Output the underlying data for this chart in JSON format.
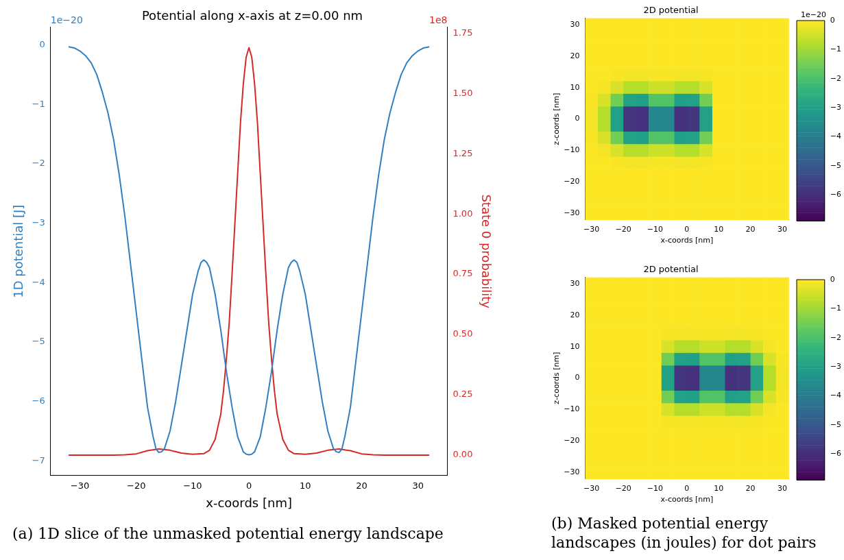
{
  "chart_data": [
    {
      "type": "line",
      "title": "Potential along x-axis at z=0.00 nm",
      "xlabel": "x-coords [nm]",
      "ylabel": "1D potential [J]",
      "y2label": "State 0 probability",
      "xlim": [
        -35.2,
        35.2
      ],
      "xticks": [
        -30,
        -20,
        -10,
        0,
        10,
        20,
        30
      ],
      "ylim": [
        -7.25,
        0.3
      ],
      "yticks": [
        -7,
        -6,
        -5,
        -4,
        -3,
        -2,
        -1,
        0
      ],
      "y2lim": [
        -0.085,
        1.775
      ],
      "y2ticks": [
        {
          "value": 0,
          "label": "0.00"
        },
        {
          "value": 0.25,
          "label": "0.25"
        },
        {
          "value": 0.5,
          "label": "0.50"
        },
        {
          "value": 0.75,
          "label": "0.75"
        },
        {
          "value": 1,
          "label": "1.00"
        },
        {
          "value": 1.25,
          "label": "1.25"
        },
        {
          "value": 1.5,
          "label": "1.50"
        },
        {
          "value": 1.75,
          "label": "1.75"
        }
      ],
      "grid": false,
      "legend": false,
      "marker": "none",
      "line_style": "solid",
      "series": [
        {
          "color": "#2f7fc1",
          "x": [
            -32,
            -31,
            -30,
            -29,
            -28,
            -27,
            -26,
            -25,
            -24,
            -23,
            -22,
            -21,
            -20,
            -19,
            -18,
            -17,
            -16.5,
            -16,
            -15.5,
            -15,
            -14,
            -13,
            -12,
            -11,
            -10,
            -9,
            -8.5,
            -8,
            -7.5,
            -7,
            -6,
            -5,
            -4,
            -3,
            -2,
            -1,
            -0.5,
            0,
            0.5,
            1,
            2,
            3,
            4,
            5,
            6,
            7,
            7.5,
            8,
            8.5,
            9,
            10,
            11,
            12,
            13,
            14,
            15,
            15.5,
            16,
            16.5,
            17,
            18,
            19,
            20,
            21,
            22,
            23,
            24,
            25,
            26,
            27,
            28,
            29,
            30,
            31,
            32
          ],
          "values": [
            -0.03,
            -0.05,
            -0.1,
            -0.18,
            -0.3,
            -0.5,
            -0.8,
            -1.15,
            -1.6,
            -2.2,
            -2.9,
            -3.7,
            -4.5,
            -5.3,
            -6.1,
            -6.6,
            -6.8,
            -6.86,
            -6.85,
            -6.8,
            -6.5,
            -6.0,
            -5.4,
            -4.8,
            -4.2,
            -3.8,
            -3.66,
            -3.62,
            -3.66,
            -3.75,
            -4.2,
            -4.8,
            -5.5,
            -6.1,
            -6.6,
            -6.85,
            -6.89,
            -6.9,
            -6.89,
            -6.85,
            -6.6,
            -6.1,
            -5.5,
            -4.8,
            -4.2,
            -3.75,
            -3.66,
            -3.62,
            -3.66,
            -3.8,
            -4.2,
            -4.8,
            -5.4,
            -6.0,
            -6.5,
            -6.8,
            -6.85,
            -6.86,
            -6.8,
            -6.6,
            -6.1,
            -5.3,
            -4.5,
            -3.7,
            -2.9,
            -2.2,
            -1.6,
            -1.15,
            -0.8,
            -0.5,
            -0.3,
            -0.18,
            -0.1,
            -0.05,
            -0.03
          ]
        },
        {
          "color": "#d62728",
          "axis": "y2",
          "x": [
            -32,
            -24,
            -22,
            -20,
            -18,
            -16,
            -14,
            -12,
            -10,
            -8,
            -7,
            -6,
            -5,
            -4.5,
            -4,
            -3.5,
            -3,
            -2.5,
            -2,
            -1.5,
            -1,
            -0.5,
            0,
            0.5,
            1,
            1.5,
            2,
            2.5,
            3,
            3.5,
            4,
            4.5,
            5,
            6,
            7,
            8,
            10,
            12,
            14,
            16,
            18,
            20,
            22,
            24,
            32
          ],
          "values": [
            0,
            0,
            0.001,
            0.005,
            0.018,
            0.025,
            0.02,
            0.008,
            0.003,
            0.006,
            0.02,
            0.065,
            0.17,
            0.27,
            0.4,
            0.55,
            0.75,
            0.96,
            1.17,
            1.38,
            1.54,
            1.65,
            1.69,
            1.65,
            1.54,
            1.38,
            1.17,
            0.96,
            0.75,
            0.55,
            0.4,
            0.27,
            0.17,
            0.065,
            0.02,
            0.006,
            0.003,
            0.008,
            0.02,
            0.025,
            0.018,
            0.005,
            0.001,
            0,
            0
          ]
        }
      ],
      "annotations": [
        "1e−20",
        "1e8",
        "(a) 1D slice of the unmasked potential energy landscape"
      ]
    },
    {
      "type": "heatmap",
      "title": "2D potential",
      "xlabel": "x-coords [nm]",
      "ylabel": "z-coords [nm]",
      "xlim": [
        -32,
        32
      ],
      "xticks": [
        -30,
        -20,
        -10,
        0,
        10,
        20,
        30
      ],
      "ylim": [
        -32,
        32
      ],
      "yticks": [
        -30,
        -20,
        -10,
        0,
        10,
        20,
        30
      ],
      "clim": [
        -6.9,
        0
      ],
      "cticks": [
        0,
        -1,
        -2,
        -3,
        -4,
        -5,
        -6
      ],
      "annotations": [
        "1e−20"
      ],
      "cells": [
        [
          0,
          0,
          0,
          0,
          0,
          0,
          0,
          0,
          0,
          0,
          0,
          0,
          0,
          0,
          0,
          0
        ],
        [
          0,
          0,
          0,
          0,
          0,
          0,
          0,
          0,
          0,
          0,
          0,
          0,
          0,
          0,
          0,
          0
        ],
        [
          0,
          0,
          0,
          0,
          0,
          0,
          0,
          0,
          0,
          0,
          0,
          0,
          0,
          0,
          0,
          0
        ],
        [
          0,
          0,
          0,
          0,
          0,
          0,
          0,
          0,
          0,
          0,
          0,
          0,
          0,
          0,
          0,
          0
        ],
        [
          0,
          -0.01,
          -0.05,
          -0.1,
          -0.1,
          -0.07,
          -0.07,
          -0.1,
          -0.1,
          -0.05,
          0,
          0,
          0,
          0,
          0,
          0
        ],
        [
          -0.01,
          -0.1,
          -0.39,
          -0.77,
          -0.77,
          -0.5,
          -0.5,
          -0.78,
          -0.77,
          -0.39,
          0,
          0,
          0,
          0,
          0,
          0
        ],
        [
          -0.05,
          -0.39,
          -1.51,
          -2.97,
          -3.02,
          -1.9,
          -1.9,
          -3.02,
          -2.97,
          -1.51,
          0,
          0,
          0,
          0,
          0,
          0
        ],
        [
          -0.1,
          -0.77,
          -2.97,
          -5.83,
          -5.93,
          -3.73,
          -3.73,
          -5.93,
          -5.84,
          -2.97,
          0,
          0,
          0,
          0,
          0,
          0
        ],
        [
          -0.1,
          -0.77,
          -2.97,
          -5.83,
          -5.93,
          -3.73,
          -3.73,
          -5.93,
          -5.84,
          -2.97,
          0,
          0,
          0,
          0,
          0,
          0
        ],
        [
          -0.05,
          -0.39,
          -1.51,
          -2.97,
          -3.02,
          -1.9,
          -1.9,
          -3.02,
          -2.97,
          -1.51,
          0,
          0,
          0,
          0,
          0,
          0
        ],
        [
          -0.01,
          -0.1,
          -0.39,
          -0.77,
          -0.77,
          -0.5,
          -0.5,
          -0.78,
          -0.77,
          -0.39,
          0,
          0,
          0,
          0,
          0,
          0
        ],
        [
          0,
          -0.01,
          -0.05,
          -0.1,
          -0.1,
          -0.07,
          -0.07,
          -0.1,
          -0.1,
          -0.05,
          0,
          0,
          0,
          0,
          0,
          0
        ],
        [
          0,
          0,
          0,
          0,
          0,
          0,
          0,
          0,
          0,
          0,
          0,
          0,
          0,
          0,
          0,
          0
        ],
        [
          0,
          0,
          0,
          0,
          0,
          0,
          0,
          0,
          0,
          0,
          0,
          0,
          0,
          0,
          0,
          0
        ],
        [
          0,
          0,
          0,
          0,
          0,
          0,
          0,
          0,
          0,
          0,
          0,
          0,
          0,
          0,
          0,
          0
        ],
        [
          0,
          0,
          0,
          0,
          0,
          0,
          0,
          0,
          0,
          0,
          0,
          0,
          0,
          0,
          0,
          0
        ]
      ]
    },
    {
      "type": "heatmap",
      "title": "2D potential",
      "xlabel": "x-coords [nm]",
      "ylabel": "z-coords [nm]",
      "xlim": [
        -32,
        32
      ],
      "xticks": [
        -30,
        -20,
        -10,
        0,
        10,
        20,
        30
      ],
      "ylim": [
        -32,
        32
      ],
      "yticks": [
        -30,
        -20,
        -10,
        0,
        10,
        20,
        30
      ],
      "clim": [
        -6.9,
        0
      ],
      "cticks": [
        0,
        -1,
        -2,
        -3,
        -4,
        -5,
        -6
      ],
      "cells": [
        [
          0,
          0,
          0,
          0,
          0,
          0,
          0,
          0,
          0,
          0,
          0,
          0,
          0,
          0,
          0,
          0
        ],
        [
          0,
          0,
          0,
          0,
          0,
          0,
          0,
          0,
          0,
          0,
          0,
          0,
          0,
          0,
          0,
          0
        ],
        [
          0,
          0,
          0,
          0,
          0,
          0,
          0,
          0,
          0,
          0,
          0,
          0,
          0,
          0,
          0,
          0
        ],
        [
          0,
          0,
          0,
          0,
          0,
          0,
          0,
          0,
          0,
          0,
          0,
          0,
          0,
          0,
          0,
          0
        ],
        [
          0,
          0,
          0,
          0,
          0,
          0,
          -0.05,
          -0.1,
          -0.1,
          -0.07,
          -0.07,
          -0.1,
          -0.1,
          -0.05,
          -0.01,
          0
        ],
        [
          0,
          0,
          0,
          0,
          0,
          0,
          -0.39,
          -0.77,
          -0.77,
          -0.5,
          -0.5,
          -0.78,
          -0.77,
          -0.39,
          -0.1,
          -0.01
        ],
        [
          0,
          0,
          0,
          0,
          0,
          0,
          -1.51,
          -2.97,
          -3.02,
          -1.9,
          -1.9,
          -3.02,
          -2.97,
          -1.51,
          -0.39,
          -0.05
        ],
        [
          0,
          0,
          0,
          0,
          0,
          0,
          -2.97,
          -5.83,
          -5.93,
          -3.73,
          -3.73,
          -5.93,
          -5.84,
          -2.97,
          -0.77,
          -0.1
        ],
        [
          0,
          0,
          0,
          0,
          0,
          0,
          -2.97,
          -5.83,
          -5.93,
          -3.73,
          -3.73,
          -5.93,
          -5.84,
          -2.97,
          -0.77,
          -0.1
        ],
        [
          0,
          0,
          0,
          0,
          0,
          0,
          -1.51,
          -2.97,
          -3.02,
          -1.9,
          -1.9,
          -3.02,
          -2.97,
          -1.51,
          -0.39,
          -0.05
        ],
        [
          0,
          0,
          0,
          0,
          0,
          0,
          -0.39,
          -0.77,
          -0.77,
          -0.5,
          -0.5,
          -0.78,
          -0.77,
          -0.39,
          -0.1,
          -0.01
        ],
        [
          0,
          0,
          0,
          0,
          0,
          0,
          -0.05,
          -0.1,
          -0.1,
          -0.07,
          -0.07,
          -0.1,
          -0.1,
          -0.05,
          -0.01,
          0
        ],
        [
          0,
          0,
          0,
          0,
          0,
          0,
          0,
          0,
          0,
          0,
          0,
          0,
          0,
          0,
          0,
          0
        ],
        [
          0,
          0,
          0,
          0,
          0,
          0,
          0,
          0,
          0,
          0,
          0,
          0,
          0,
          0,
          0,
          0
        ],
        [
          0,
          0,
          0,
          0,
          0,
          0,
          0,
          0,
          0,
          0,
          0,
          0,
          0,
          0,
          0,
          0
        ],
        [
          0,
          0,
          0,
          0,
          0,
          0,
          0,
          0,
          0,
          0,
          0,
          0,
          0,
          0,
          0,
          0
        ]
      ],
      "annotations": [
        "(b) Masked potential energy landscapes (in joules) for dot pairs"
      ]
    }
  ]
}
